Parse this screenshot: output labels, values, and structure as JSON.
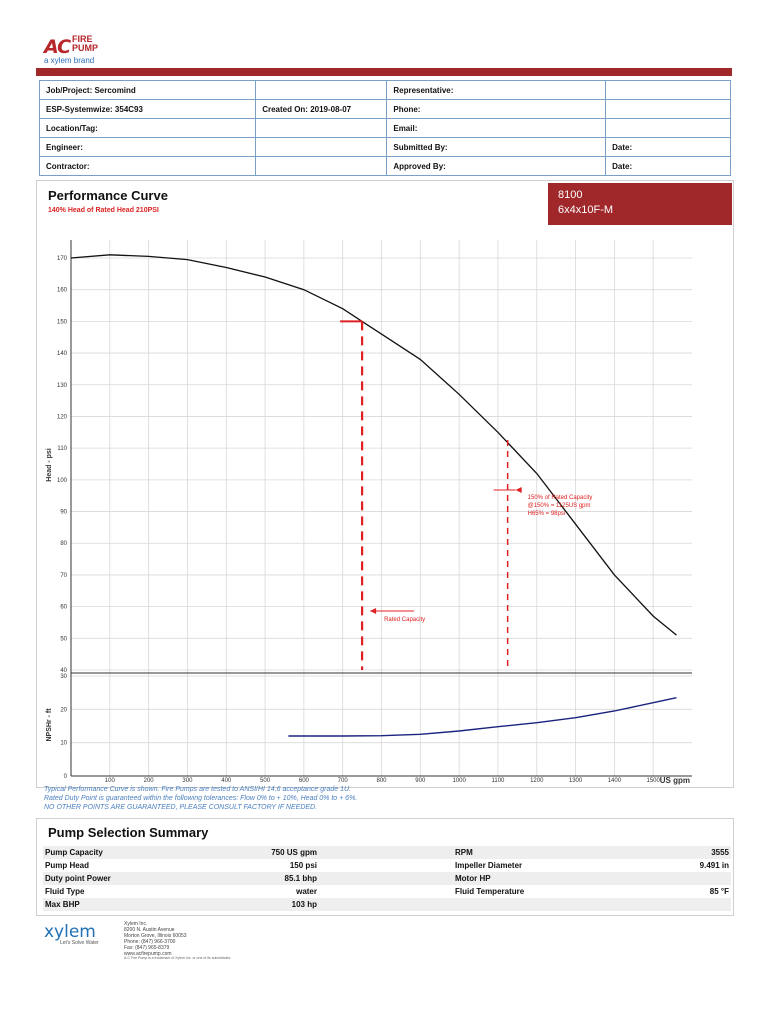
{
  "brand": {
    "logo_ac": "AC",
    "logo_line1": "FIRE",
    "logo_line2": "PUMP",
    "tagline": "a xylem brand"
  },
  "info_table": [
    [
      {
        "label": "Job/Project: Sercomind"
      },
      {
        "label": ""
      },
      {
        "label": "Representative:"
      },
      {
        "label": ""
      }
    ],
    [
      {
        "label": "ESP-Systemwize: 354C93"
      },
      {
        "label": "Created On: 2019-08-07"
      },
      {
        "label": "Phone:"
      },
      {
        "label": ""
      }
    ],
    [
      {
        "label": "Location/Tag:"
      },
      {
        "label": ""
      },
      {
        "label": "Email:"
      },
      {
        "label": ""
      }
    ],
    [
      {
        "label": "Engineer:"
      },
      {
        "label": ""
      },
      {
        "label": "Submitted By:"
      },
      {
        "label": "Date:"
      }
    ],
    [
      {
        "label": "Contractor:"
      },
      {
        "label": ""
      },
      {
        "label": "Approved By:"
      },
      {
        "label": "Date:"
      }
    ]
  ],
  "performance": {
    "title": "Performance Curve",
    "subtitle": "140% Head of Rated Head 210PSI",
    "model_line1": "8100",
    "model_line2": "6x4x10F-M"
  },
  "chart_data": {
    "type": "line",
    "head_curve": {
      "ylabel": "Head - psi",
      "y_ticks": [
        40,
        50,
        60,
        70,
        80,
        90,
        100,
        110,
        120,
        130,
        140,
        150,
        160,
        170
      ],
      "ylim": [
        40,
        175
      ],
      "x": [
        0,
        100,
        200,
        300,
        400,
        500,
        600,
        700,
        750,
        800,
        900,
        1000,
        1100,
        1200,
        1300,
        1400,
        1500,
        1560
      ],
      "y": [
        170,
        171,
        170.5,
        169.5,
        167,
        164,
        160,
        154,
        150,
        146,
        138,
        127,
        115,
        102,
        86,
        70,
        57,
        51
      ]
    },
    "npsh_curve": {
      "ylabel": "NPSHr - ft",
      "y_ticks": [
        0,
        10,
        20,
        30
      ],
      "ylim": [
        0,
        30
      ],
      "x": [
        560,
        700,
        800,
        900,
        1000,
        1100,
        1200,
        1300,
        1400,
        1500,
        1560
      ],
      "y": [
        12,
        12,
        12.1,
        12.5,
        13.5,
        14.8,
        16,
        17.5,
        19.5,
        22,
        23.5
      ]
    },
    "x_ticks": [
      100,
      200,
      300,
      400,
      500,
      600,
      700,
      800,
      900,
      1000,
      1100,
      1200,
      1300,
      1400,
      1500
    ],
    "xlim": [
      0,
      1600
    ],
    "xlabel": "US gpm",
    "grid": true,
    "rated_point": {
      "x": 750,
      "y": 150
    },
    "annotations": {
      "rated": "Rated Capacity",
      "overload_lines": [
        "150% of Rated Capacity",
        "@150% = 1125US gpm",
        "H65% = 98psi"
      ],
      "overload_x": 1125
    }
  },
  "notes": [
    "Typical Performance Curve is shown. Fire Pumps are tested to ANSI/HI 14.6 acceptance grade 1U.",
    "Rated Duty Point is guaranteed within the following tolerances: Flow 0% to + 10%, Head 0% to + 6%.",
    "NO OTHER POINTS ARE GUARANTEED, PLEASE CONSULT FACTORY IF NEEDED."
  ],
  "summary": {
    "title": "Pump Selection Summary",
    "rows": [
      {
        "l_label": "Pump Capacity",
        "l_value": "750 US gpm",
        "r_label": "RPM",
        "r_value": "3555"
      },
      {
        "l_label": "Pump Head",
        "l_value": "150 psi",
        "r_label": "Impeller Diameter",
        "r_value": "9.491 in"
      },
      {
        "l_label": "Duty point Power",
        "l_value": "85.1 bhp",
        "r_label": "Motor HP",
        "r_value": ""
      },
      {
        "l_label": "Fluid Type",
        "l_value": "water",
        "r_label": "Fluid Temperature",
        "r_value": "85 °F"
      },
      {
        "l_label": "Max BHP",
        "l_value": "103 hp",
        "r_label": "",
        "r_value": ""
      }
    ]
  },
  "footer": {
    "logo": "xylem",
    "tagline": "Let's Solve Water",
    "address_lines": [
      "Xylem Inc.",
      "8200 N. Austin Avenue",
      "Morton Grove, Illinois 60053",
      "Phone: (847) 966-3700",
      "Fax: (847) 965-8379",
      "www.acfirepump.com"
    ],
    "trademark": "A-C Fire Pump is a trademark of Xylem Inc. or one of its subsidiaries."
  }
}
